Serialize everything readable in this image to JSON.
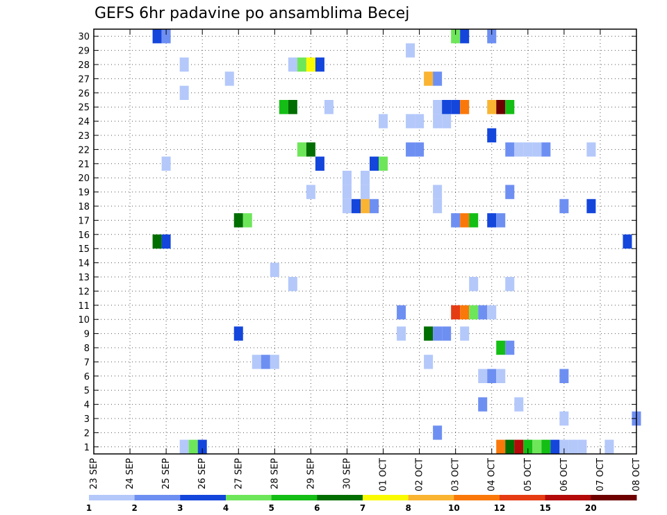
{
  "chart_data": {
    "type": "heatmap",
    "title": "GEFS 6hr padavine po ansamblima Becej",
    "xlabel": "",
    "ylabel": "",
    "xlim": [
      0,
      15
    ],
    "ylim": [
      0.5,
      30.5
    ],
    "x_axis_note": "x in days since 23 SEP 00Z, 6-hour steps",
    "x_tick_labels": [
      "23 SEP",
      "24 SEP",
      "25 SEP",
      "26 SEP",
      "27 SEP",
      "28 SEP",
      "29 SEP",
      "30 SEP",
      "01 OCT",
      "02 OCT",
      "03 OCT",
      "04 OCT",
      "05 OCT",
      "06 OCT",
      "07 OCT",
      "08 OCT"
    ],
    "y_tick_labels": [
      "1",
      "2",
      "3",
      "4",
      "5",
      "6",
      "7",
      "8",
      "9",
      "10",
      "11",
      "12",
      "13",
      "14",
      "15",
      "16",
      "17",
      "18",
      "19",
      "20",
      "21",
      "22",
      "23",
      "24",
      "25",
      "26",
      "27",
      "28",
      "29",
      "30"
    ],
    "grid": true,
    "colorbar": {
      "colors": [
        "#b4c8fa",
        "#6e8ff2",
        "#1446dc",
        "#6ee65a",
        "#14be14",
        "#006e00",
        "#fafa00",
        "#fab432",
        "#fa780a",
        "#e63c14",
        "#b40a0a",
        "#6e0000"
      ],
      "labels": [
        "1",
        "2",
        "3",
        "4",
        "5",
        "6",
        "7",
        "8",
        "10",
        "12",
        "15",
        "20"
      ]
    },
    "cells": [
      {
        "member": 30,
        "t": 1.75,
        "v": 3
      },
      {
        "member": 30,
        "t": 2.0,
        "v": 2
      },
      {
        "member": 30,
        "t": 10.0,
        "v": 4
      },
      {
        "member": 30,
        "t": 10.25,
        "v": 3
      },
      {
        "member": 30,
        "t": 11.0,
        "v": 2
      },
      {
        "member": 29,
        "t": 8.75,
        "v": 1
      },
      {
        "member": 28,
        "t": 2.5,
        "v": 1
      },
      {
        "member": 28,
        "t": 5.5,
        "v": 1
      },
      {
        "member": 28,
        "t": 5.75,
        "v": 4
      },
      {
        "member": 28,
        "t": 6.0,
        "v": 7
      },
      {
        "member": 28,
        "t": 6.25,
        "v": 3
      },
      {
        "member": 27,
        "t": 3.75,
        "v": 1
      },
      {
        "member": 27,
        "t": 9.25,
        "v": 8
      },
      {
        "member": 27,
        "t": 9.5,
        "v": 2
      },
      {
        "member": 26,
        "t": 2.5,
        "v": 1
      },
      {
        "member": 25,
        "t": 5.25,
        "v": 5
      },
      {
        "member": 25,
        "t": 5.5,
        "v": 6
      },
      {
        "member": 25,
        "t": 6.5,
        "v": 1
      },
      {
        "member": 25,
        "t": 9.5,
        "v": 1
      },
      {
        "member": 25,
        "t": 9.75,
        "v": 3
      },
      {
        "member": 25,
        "t": 10.0,
        "v": 3
      },
      {
        "member": 25,
        "t": 10.25,
        "v": 10
      },
      {
        "member": 25,
        "t": 11.0,
        "v": 8
      },
      {
        "member": 25,
        "t": 11.25,
        "v": 20
      },
      {
        "member": 25,
        "t": 11.5,
        "v": 5
      },
      {
        "member": 24,
        "t": 8.0,
        "v": 1
      },
      {
        "member": 24,
        "t": 8.75,
        "v": 1
      },
      {
        "member": 24,
        "t": 9.0,
        "v": 1
      },
      {
        "member": 24,
        "t": 9.5,
        "v": 1
      },
      {
        "member": 24,
        "t": 9.75,
        "v": 1
      },
      {
        "member": 23,
        "t": 11.0,
        "v": 3
      },
      {
        "member": 22,
        "t": 5.75,
        "v": 4
      },
      {
        "member": 22,
        "t": 6.0,
        "v": 6
      },
      {
        "member": 22,
        "t": 8.75,
        "v": 2
      },
      {
        "member": 22,
        "t": 9.0,
        "v": 2
      },
      {
        "member": 22,
        "t": 11.5,
        "v": 2
      },
      {
        "member": 22,
        "t": 11.75,
        "v": 1
      },
      {
        "member": 22,
        "t": 12.0,
        "v": 1
      },
      {
        "member": 22,
        "t": 12.25,
        "v": 1
      },
      {
        "member": 22,
        "t": 12.5,
        "v": 2
      },
      {
        "member": 22,
        "t": 13.75,
        "v": 1
      },
      {
        "member": 21,
        "t": 2.0,
        "v": 1
      },
      {
        "member": 21,
        "t": 6.25,
        "v": 3
      },
      {
        "member": 21,
        "t": 7.75,
        "v": 3
      },
      {
        "member": 21,
        "t": 8.0,
        "v": 4
      },
      {
        "member": 20,
        "t": 7.0,
        "v": 1
      },
      {
        "member": 20,
        "t": 7.5,
        "v": 1
      },
      {
        "member": 19,
        "t": 6.0,
        "v": 1
      },
      {
        "member": 19,
        "t": 7.0,
        "v": 1
      },
      {
        "member": 19,
        "t": 7.5,
        "v": 1
      },
      {
        "member": 19,
        "t": 9.5,
        "v": 1
      },
      {
        "member": 19,
        "t": 11.5,
        "v": 2
      },
      {
        "member": 18,
        "t": 7.0,
        "v": 1
      },
      {
        "member": 18,
        "t": 7.25,
        "v": 3
      },
      {
        "member": 18,
        "t": 7.5,
        "v": 8
      },
      {
        "member": 18,
        "t": 7.75,
        "v": 2
      },
      {
        "member": 18,
        "t": 9.5,
        "v": 1
      },
      {
        "member": 18,
        "t": 13.0,
        "v": 2
      },
      {
        "member": 18,
        "t": 13.75,
        "v": 3
      },
      {
        "member": 17,
        "t": 4.0,
        "v": 6
      },
      {
        "member": 17,
        "t": 4.25,
        "v": 4
      },
      {
        "member": 17,
        "t": 10.0,
        "v": 2
      },
      {
        "member": 17,
        "t": 10.25,
        "v": 10
      },
      {
        "member": 17,
        "t": 10.5,
        "v": 5
      },
      {
        "member": 17,
        "t": 11.0,
        "v": 3
      },
      {
        "member": 17,
        "t": 11.25,
        "v": 2
      },
      {
        "member": 15.5,
        "t": 1.75,
        "v": 6
      },
      {
        "member": 15.5,
        "t": 2.0,
        "v": 3
      },
      {
        "member": 15.5,
        "t": 14.75,
        "v": 3
      },
      {
        "member": 13.5,
        "t": 5.0,
        "v": 1
      },
      {
        "member": 12.5,
        "t": 5.5,
        "v": 1
      },
      {
        "member": 12.5,
        "t": 10.5,
        "v": 1
      },
      {
        "member": 12.5,
        "t": 11.5,
        "v": 1
      },
      {
        "member": 10.5,
        "t": 10.0,
        "v": 12
      },
      {
        "member": 10.5,
        "t": 10.25,
        "v": 10
      },
      {
        "member": 10.5,
        "t": 10.5,
        "v": 4
      },
      {
        "member": 10.5,
        "t": 10.75,
        "v": 2
      },
      {
        "member": 10.5,
        "t": 11.0,
        "v": 1
      },
      {
        "member": 10.5,
        "t": 8.5,
        "v": 2
      },
      {
        "member": 9,
        "t": 8.5,
        "v": 1
      },
      {
        "member": 9,
        "t": 4.0,
        "v": 3
      },
      {
        "member": 9,
        "t": 9.25,
        "v": 6
      },
      {
        "member": 9,
        "t": 9.5,
        "v": 2
      },
      {
        "member": 9,
        "t": 9.75,
        "v": 2
      },
      {
        "member": 9,
        "t": 10.25,
        "v": 1
      },
      {
        "member": 8,
        "t": 11.25,
        "v": 5
      },
      {
        "member": 8,
        "t": 11.5,
        "v": 2
      },
      {
        "member": 7,
        "t": 4.5,
        "v": 1
      },
      {
        "member": 7,
        "t": 4.75,
        "v": 2
      },
      {
        "member": 7,
        "t": 5.0,
        "v": 1
      },
      {
        "member": 7,
        "t": 9.25,
        "v": 1
      },
      {
        "member": 6,
        "t": 10.75,
        "v": 1
      },
      {
        "member": 6,
        "t": 11.0,
        "v": 2
      },
      {
        "member": 6,
        "t": 11.25,
        "v": 1
      },
      {
        "member": 6,
        "t": 13.0,
        "v": 2
      },
      {
        "member": 4,
        "t": 10.75,
        "v": 2
      },
      {
        "member": 4,
        "t": 11.75,
        "v": 1
      },
      {
        "member": 3,
        "t": 13.0,
        "v": 1
      },
      {
        "member": 3,
        "t": 15.0,
        "v": 2
      },
      {
        "member": 2,
        "t": 9.5,
        "v": 2
      },
      {
        "member": 1,
        "t": 2.5,
        "v": 1
      },
      {
        "member": 1,
        "t": 2.75,
        "v": 4
      },
      {
        "member": 1,
        "t": 3.0,
        "v": 3
      },
      {
        "member": 1,
        "t": 11.25,
        "v": 10
      },
      {
        "member": 1,
        "t": 11.5,
        "v": 6
      },
      {
        "member": 1,
        "t": 11.75,
        "v": 15
      },
      {
        "member": 1,
        "t": 12.0,
        "v": 5
      },
      {
        "member": 1,
        "t": 12.25,
        "v": 4
      },
      {
        "member": 1,
        "t": 12.5,
        "v": 5
      },
      {
        "member": 1,
        "t": 12.75,
        "v": 3
      },
      {
        "member": 1,
        "t": 13.0,
        "v": 1
      },
      {
        "member": 1,
        "t": 13.25,
        "v": 1
      },
      {
        "member": 1,
        "t": 13.5,
        "v": 1
      },
      {
        "member": 1,
        "t": 14.25,
        "v": 1
      }
    ]
  }
}
